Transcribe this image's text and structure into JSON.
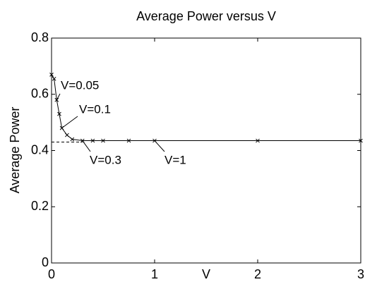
{
  "chart_data": {
    "type": "line",
    "title": "Average Power versus V",
    "xlabel": "V",
    "ylabel": "Average Power",
    "x": [
      0,
      0.025,
      0.05,
      0.075,
      0.1,
      0.15,
      0.2,
      0.3,
      0.4,
      0.5,
      0.75,
      1,
      2,
      3
    ],
    "series": [
      {
        "color": "#000000",
        "values": [
          0.67,
          0.655,
          0.58,
          0.53,
          0.48,
          0.455,
          0.44,
          0.435,
          0.435,
          0.435,
          0.435,
          0.435,
          0.435,
          0.435
        ]
      }
    ],
    "reference_line": {
      "value": 0.43,
      "color": "#000000"
    },
    "annotations": [
      "V=0.05",
      "V=0.1",
      "V=0.3",
      "V=1"
    ],
    "xlim": [
      0,
      3
    ],
    "ylim": [
      0,
      0.8
    ],
    "xticks": [
      0,
      1,
      2,
      3
    ],
    "yticks": [
      0,
      0.2,
      0.4,
      0.6,
      0.8
    ],
    "grid": false
  }
}
